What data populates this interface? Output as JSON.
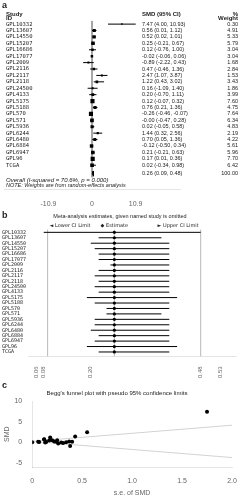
{
  "chart_data": [
    {
      "type": "forest",
      "panel_label": "a",
      "column_headers": {
        "left": [
          "Study",
          "ID"
        ],
        "ci": "SMD (95% CI)",
        "weight": [
          "%",
          "Weight"
        ]
      },
      "categories": [
        "GPL10332",
        "GPL13607",
        "GPL14550",
        "GPL15207",
        "GPL16686",
        "GPL17077",
        "GPL2009",
        "GPL2116",
        "GPL2117",
        "GPL2118",
        "GPL24500",
        "GPL4133",
        "GPL5175",
        "GPL5188",
        "GPL570",
        "GPL571",
        "GPL5936",
        "GPL6244",
        "GPL6480",
        "GPL6884",
        "GPL6947",
        "GPL96",
        "TCGA"
      ],
      "values": [
        7.47,
        0.56,
        0.52,
        0.25,
        0.12,
        -0.02,
        -0.89,
        0.47,
        2.47,
        1.22,
        0.16,
        0.2,
        0.12,
        0.76,
        -0.26,
        -0.0,
        0.02,
        1.44,
        0.7,
        -0.12,
        0.21,
        0.17,
        0.02
      ],
      "ci_low": [
        4.0,
        0.01,
        0.02,
        -0.21,
        -0.76,
        -0.06,
        -2.22,
        -0.46,
        1.07,
        0.43,
        -1.09,
        -0.7,
        -0.07,
        0.21,
        -0.46,
        -0.47,
        -0.05,
        0.32,
        0.05,
        -0.5,
        -0.21,
        0.01,
        -0.34
      ],
      "ci_high": [
        10.93,
        1.12,
        1.01,
        0.67,
        1.0,
        0.06,
        0.43,
        1.36,
        3.87,
        3.02,
        1.4,
        1.11,
        0.32,
        1.36,
        -0.07,
        0.28,
        0.58,
        2.56,
        1.36,
        0.34,
        0.63,
        0.36,
        0.98
      ],
      "ci_labels": [
        "7.47 (4.00, 10.93)",
        "0.56 (0.01, 1.12)",
        "0.52 (0.02, 1.01)",
        "0.25 (-0.21, 0.67)",
        "0.12 (-0.76, 1.00)",
        "-0.02 (-0.06, 0.06)",
        "-0.89 (-2.22, 0.43)",
        "0.47 (-0.46, 1.36)",
        "2.47 (1.07, 3.87)",
        "1.22 (0.43, 3.02)",
        "0.16 (-1.09, 1.40)",
        "0.20 (-0.70, 1.11)",
        "0.12 (-0.07, 0.32)",
        "0.76 (0.21, 1.36)",
        "-0.26 (-0.46, -0.07)",
        "-0.00 (-0.47, 0.28)",
        "0.02 (-0.05, 0.58)",
        "1.44 (0.32, 2.56)",
        "0.70 (0.05, 1.36)",
        "-0.12 (-0.50, 0.34)",
        "0.21 (-0.21, 0.63)",
        "0.17 (0.01, 0.36)",
        "0.02 (-0.34, 0.98)"
      ],
      "weights": [
        0.3,
        4.91,
        5.33,
        5.79,
        3.04,
        3.04,
        1.68,
        2.84,
        1.53,
        3.43,
        1.86,
        3.99,
        7.6,
        4.75,
        7.64,
        6.34,
        4.83,
        2.19,
        4.22,
        5.61,
        5.96,
        7.7,
        6.42
      ],
      "weight_labels": [
        "0.30",
        "4.91",
        "5.33",
        "5.79",
        "3.04",
        "3.04",
        "1.68",
        "2.84",
        "1.53",
        "3.43",
        "1.86",
        "3.99",
        "7.60",
        "4.75",
        "7.64",
        "6.34",
        "4.83",
        "2.19",
        "4.22",
        "5.61",
        "5.96",
        "7.70",
        "6.42"
      ],
      "overall": {
        "label": "Overall (I-squared = 70.6%, p = 0.000)",
        "value": 0.26,
        "ci_low": 0.09,
        "ci_high": 0.48,
        "ci_label": "0.26 (0.09, 0.48)",
        "weight_label": "100.00"
      },
      "note": "NOTE: Weights are from random-effects analysis",
      "reference_lines": [
        0
      ],
      "color": "#000000",
      "xlim": [
        -22,
        22
      ],
      "xticks": [
        -10.9,
        0,
        10.9
      ],
      "grid": false
    },
    {
      "type": "sensitivity",
      "panel_label": "b",
      "title": "Meta-analysis estimates, given named study is omitted",
      "column_headers": [
        "◄ Lower CI Limit",
        "◆ Estimate",
        "► Upper CI Limit"
      ],
      "categories": [
        "GPL10332",
        "GPL13607",
        "GPL14550",
        "GPL15207",
        "GPL16686",
        "GPL17077",
        "GPL2009",
        "GPL2116",
        "GPL2117",
        "GPL2118",
        "GPL24500",
        "GPL4133",
        "GPL5175",
        "GPL5188",
        "GPL570",
        "GPL571",
        "GPL5936",
        "GPL6244",
        "GPL6480",
        "GPL6884",
        "GPL6947",
        "GPL96",
        "TCGA"
      ],
      "lower": [
        0.08,
        0.22,
        0.2,
        0.21,
        0.22,
        0.22,
        0.25,
        0.22,
        0.21,
        0.22,
        0.21,
        0.22,
        0.19,
        0.21,
        0.24,
        0.24,
        0.21,
        0.21,
        0.2,
        0.22,
        0.21,
        0.19,
        0.22
      ],
      "values": [
        0.26,
        0.26,
        0.26,
        0.26,
        0.26,
        0.26,
        0.26,
        0.26,
        0.26,
        0.26,
        0.26,
        0.26,
        0.26,
        0.26,
        0.26,
        0.26,
        0.26,
        0.26,
        0.26,
        0.26,
        0.26,
        0.26,
        0.26
      ],
      "upper": [
        0.48,
        0.38,
        0.4,
        0.4,
        0.4,
        0.4,
        0.4,
        0.4,
        0.4,
        0.4,
        0.4,
        0.4,
        0.42,
        0.4,
        0.4,
        0.38,
        0.4,
        0.4,
        0.4,
        0.4,
        0.4,
        0.42,
        0.4
      ],
      "reference_lines": [
        0.09,
        0.26,
        0.48
      ],
      "color": "#000000",
      "xlim": [
        0.04,
        0.57
      ],
      "xticks": [
        0.06,
        0.08,
        {
          "value": 0.2,
          "label": "0.20"
        },
        0.48,
        0.53
      ],
      "grid": false
    },
    {
      "type": "scatter",
      "panel_label": "c",
      "title": "Begg's funnel plot with pseudo 95% confidence limits",
      "x_label": "s.e. of SMD",
      "y_label": "SMD",
      "series": [
        {
          "type": "scatter",
          "color": "#000000",
          "x": [
            0.0,
            0.06,
            0.07,
            0.12,
            0.12,
            0.13,
            0.14,
            0.17,
            0.18,
            0.2,
            0.22,
            0.24,
            0.25,
            0.26,
            0.29,
            0.31,
            0.34,
            0.37,
            0.38,
            0.4,
            0.43,
            0.55,
            1.75
          ],
          "values": [
            0.02,
            0.17,
            0.12,
            0.7,
            0.76,
            -0.0,
            0.12,
            0.47,
            1.22,
            0.56,
            0.25,
            0.2,
            0.52,
            -0.26,
            -0.02,
            -0.12,
            0.02,
            0.21,
            -0.89,
            0.16,
            1.44,
            2.47,
            7.47
          ]
        },
        {
          "type": "line",
          "color": "#d3d3d3",
          "x": [
            0,
            2
          ],
          "values": [
            0.26,
            4.18
          ]
        },
        {
          "type": "line",
          "color": "#d3d3d3",
          "x": [
            0,
            2
          ],
          "values": [
            0.26,
            -3.66
          ]
        }
      ],
      "xlim": [
        0,
        2
      ],
      "xticks": [
        0,
        0.5,
        {
          "value": 1,
          "label": "1.0"
        },
        1.5,
        {
          "value": 2,
          "label": "2.0"
        }
      ],
      "ylim": [
        -6,
        10
      ],
      "yticks": [
        -5,
        0,
        5,
        10
      ],
      "grid": false
    }
  ]
}
